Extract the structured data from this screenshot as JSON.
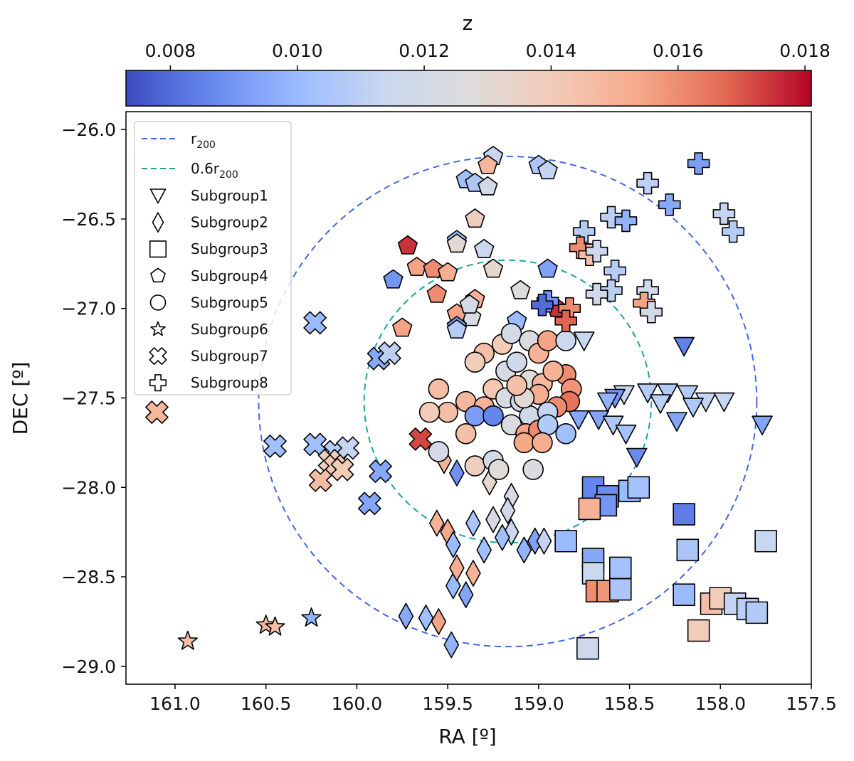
{
  "chart_data": {
    "type": "scatter",
    "xlabel": "RA [º]",
    "ylabel": "DEC [º]",
    "xlim": [
      161.27,
      157.5
    ],
    "ylim": [
      -29.1,
      -25.9
    ],
    "xticks": [
      161.0,
      160.5,
      160.0,
      159.5,
      159.0,
      158.5,
      158.0,
      157.5
    ],
    "xtick_labels": [
      "161.0",
      "160.5",
      "160.0",
      "159.5",
      "159.0",
      "158.5",
      "158.0",
      "157.5"
    ],
    "yticks": [
      -26.0,
      -26.5,
      -27.0,
      -27.5,
      -28.0,
      -28.5,
      -29.0
    ],
    "ytick_labels": [
      "−26.0",
      "−26.5",
      "−27.0",
      "−27.5",
      "−28.0",
      "−28.5",
      "−29.0"
    ],
    "colorbar": {
      "label": "z",
      "range": [
        0.0073,
        0.0181
      ],
      "ticks": [
        0.008,
        0.01,
        0.012,
        0.014,
        0.016,
        0.018
      ],
      "tick_labels": [
        "0.008",
        "0.010",
        "0.012",
        "0.014",
        "0.016",
        "0.018"
      ],
      "colormap": "coolwarm",
      "colormap_stops": [
        "#3b4cc0",
        "#6788ee",
        "#9abbff",
        "#c9d7f0",
        "#dddcdc",
        "#f2cbb7",
        "#f7a889",
        "#e26952",
        "#b40426"
      ]
    },
    "circles": [
      {
        "name": "r200",
        "center": [
          159.17,
          -27.52
        ],
        "radius": 1.37,
        "color": "#4169e1",
        "style": "dashed"
      },
      {
        "name": "0.6r200",
        "center": [
          159.17,
          -27.52
        ],
        "radius": 0.79,
        "color": "#20a39e",
        "style": "dashed"
      }
    ],
    "legend": {
      "position": "upper-left",
      "lines": [
        {
          "label_main": "r",
          "label_sub": "200",
          "color": "#4169e1"
        },
        {
          "label_main": "0.6r",
          "label_sub": "200",
          "color": "#20a39e"
        }
      ],
      "markers": [
        {
          "label": "Subgroup1",
          "marker": "tri_down"
        },
        {
          "label": "Subgroup2",
          "marker": "diamond"
        },
        {
          "label": "Subgroup3",
          "marker": "square"
        },
        {
          "label": "Subgroup4",
          "marker": "pentagon"
        },
        {
          "label": "Subgroup5",
          "marker": "circle"
        },
        {
          "label": "Subgroup6",
          "marker": "star"
        },
        {
          "label": "Subgroup7",
          "marker": "x"
        },
        {
          "label": "Subgroup8",
          "marker": "plus"
        }
      ]
    },
    "series": [
      {
        "name": "Subgroup1",
        "marker": "tri_down",
        "points": [
          [
            158.75,
            -27.18,
            0.0113
          ],
          [
            158.2,
            -27.21,
            0.0085
          ],
          [
            158.53,
            -27.48,
            0.0114
          ],
          [
            158.4,
            -27.47,
            0.0108
          ],
          [
            158.29,
            -27.47,
            0.0107
          ],
          [
            158.18,
            -27.48,
            0.0107
          ],
          [
            158.08,
            -27.52,
            0.0112
          ],
          [
            157.98,
            -27.52,
            0.0113
          ],
          [
            158.15,
            -27.55,
            0.0106
          ],
          [
            158.58,
            -27.5,
            0.009
          ],
          [
            158.78,
            -27.62,
            0.0095
          ],
          [
            158.67,
            -27.62,
            0.0094
          ],
          [
            158.59,
            -27.65,
            0.0106
          ],
          [
            158.52,
            -27.7,
            0.0103
          ],
          [
            158.46,
            -27.83,
            0.0087
          ],
          [
            158.24,
            -27.63,
            0.0094
          ],
          [
            157.77,
            -27.65,
            0.0094
          ],
          [
            158.62,
            -27.52,
            0.0098
          ],
          [
            158.33,
            -27.53,
            0.011
          ]
        ]
      },
      {
        "name": "Subgroup2",
        "marker": "diamond",
        "points": [
          [
            159.45,
            -27.92,
            0.0089
          ],
          [
            159.27,
            -27.97,
            0.0132
          ],
          [
            159.15,
            -28.05,
            0.0122
          ],
          [
            159.56,
            -28.2,
            0.015
          ],
          [
            159.5,
            -28.25,
            0.0154
          ],
          [
            159.47,
            -28.32,
            0.01
          ],
          [
            159.36,
            -28.2,
            0.0105
          ],
          [
            159.3,
            -28.35,
            0.0102
          ],
          [
            159.25,
            -28.18,
            0.0122
          ],
          [
            159.17,
            -28.13,
            0.0118
          ],
          [
            159.15,
            -28.25,
            0.0114
          ],
          [
            159.08,
            -28.35,
            0.0098
          ],
          [
            159.02,
            -28.3,
            0.0093
          ],
          [
            158.97,
            -28.3,
            0.0112
          ],
          [
            159.36,
            -28.48,
            0.015
          ],
          [
            159.47,
            -28.55,
            0.01
          ],
          [
            159.4,
            -28.6,
            0.0094
          ],
          [
            159.55,
            -28.75,
            0.0155
          ],
          [
            159.62,
            -28.73,
            0.0102
          ],
          [
            159.48,
            -28.88,
            0.0098
          ],
          [
            159.52,
            -27.85,
            0.015
          ],
          [
            159.45,
            -28.45,
            0.0152
          ],
          [
            159.2,
            -28.28,
            0.0102
          ],
          [
            159.73,
            -28.72,
            0.0095
          ]
        ]
      },
      {
        "name": "Subgroup3",
        "marker": "square",
        "points": [
          [
            158.7,
            -28.0,
            0.0086
          ],
          [
            158.62,
            -28.05,
            0.0088
          ],
          [
            158.63,
            -28.1,
            0.009
          ],
          [
            158.72,
            -28.12,
            0.015
          ],
          [
            158.5,
            -28.02,
            0.01
          ],
          [
            158.45,
            -28.0,
            0.0103
          ],
          [
            158.85,
            -28.3,
            0.01
          ],
          [
            158.7,
            -28.4,
            0.0095
          ],
          [
            158.55,
            -28.45,
            0.0103
          ],
          [
            158.7,
            -28.48,
            0.0115
          ],
          [
            158.68,
            -28.58,
            0.016
          ],
          [
            158.62,
            -28.58,
            0.0158
          ],
          [
            158.55,
            -28.57,
            0.0105
          ],
          [
            158.2,
            -28.15,
            0.0084
          ],
          [
            158.18,
            -28.35,
            0.0105
          ],
          [
            158.2,
            -28.6,
            0.01
          ],
          [
            157.75,
            -28.3,
            0.0113
          ],
          [
            158.05,
            -28.65,
            0.0145
          ],
          [
            158.0,
            -28.62,
            0.014
          ],
          [
            157.92,
            -28.65,
            0.0112
          ],
          [
            157.85,
            -28.68,
            0.0109
          ],
          [
            157.8,
            -28.7,
            0.0107
          ],
          [
            158.12,
            -28.8,
            0.014
          ],
          [
            158.73,
            -28.9,
            0.0117
          ]
        ]
      },
      {
        "name": "Subgroup4",
        "marker": "pentagon",
        "points": [
          [
            159.4,
            -26.28,
            0.0102
          ],
          [
            159.35,
            -26.3,
            0.0106
          ],
          [
            159.25,
            -26.15,
            0.0113
          ],
          [
            159.28,
            -26.2,
            0.0148
          ],
          [
            159.28,
            -26.32,
            0.012
          ],
          [
            159.0,
            -26.2,
            0.0105
          ],
          [
            158.95,
            -26.23,
            0.0112
          ],
          [
            159.35,
            -26.5,
            0.0138
          ],
          [
            159.45,
            -26.62,
            0.0102
          ],
          [
            159.45,
            -26.64,
            0.013
          ],
          [
            159.72,
            -26.65,
            0.0175
          ],
          [
            159.67,
            -26.77,
            0.0155
          ],
          [
            159.58,
            -26.78,
            0.016
          ],
          [
            159.5,
            -26.8,
            0.0152
          ],
          [
            159.8,
            -26.84,
            0.009
          ],
          [
            159.56,
            -26.92,
            0.016
          ],
          [
            159.3,
            -26.67,
            0.0115
          ],
          [
            159.25,
            -26.78,
            0.0132
          ],
          [
            158.95,
            -26.78,
            0.0093
          ],
          [
            159.1,
            -26.9,
            0.0126
          ],
          [
            159.35,
            -26.95,
            0.015
          ],
          [
            159.37,
            -27.05,
            0.0125
          ],
          [
            158.9,
            -27.0,
            0.0175
          ],
          [
            159.12,
            -27.07,
            0.01
          ],
          [
            159.45,
            -27.03,
            0.0155
          ],
          [
            159.45,
            -27.1,
            0.009
          ],
          [
            159.45,
            -27.12,
            0.0108
          ],
          [
            159.75,
            -27.11,
            0.0155
          ],
          [
            159.38,
            -26.98,
            0.012
          ]
        ]
      },
      {
        "name": "Subgroup5",
        "marker": "circle",
        "points": [
          [
            159.55,
            -27.45,
            0.0146
          ],
          [
            159.5,
            -27.58,
            0.0145
          ],
          [
            159.3,
            -27.25,
            0.0145
          ],
          [
            159.2,
            -27.2,
            0.014
          ],
          [
            159.15,
            -27.14,
            0.012
          ],
          [
            159.05,
            -27.18,
            0.0125
          ],
          [
            159.0,
            -27.25,
            0.015
          ],
          [
            158.95,
            -27.18,
            0.0155
          ],
          [
            158.85,
            -27.18,
            0.0115
          ],
          [
            159.35,
            -27.3,
            0.014
          ],
          [
            159.18,
            -27.35,
            0.0122
          ],
          [
            159.12,
            -27.3,
            0.0118
          ],
          [
            159.05,
            -27.4,
            0.0128
          ],
          [
            158.98,
            -27.42,
            0.0148
          ],
          [
            158.85,
            -27.37,
            0.016
          ],
          [
            158.82,
            -27.45,
            0.0158
          ],
          [
            158.83,
            -27.52,
            0.0165
          ],
          [
            159.4,
            -27.52,
            0.0148
          ],
          [
            159.3,
            -27.55,
            0.015
          ],
          [
            159.25,
            -27.45,
            0.0142
          ],
          [
            159.18,
            -27.5,
            0.0122
          ],
          [
            159.1,
            -27.52,
            0.012
          ],
          [
            159.0,
            -27.48,
            0.0152
          ],
          [
            158.9,
            -27.55,
            0.016
          ],
          [
            159.35,
            -27.6,
            0.0092
          ],
          [
            159.25,
            -27.6,
            0.0086
          ],
          [
            159.15,
            -27.65,
            0.0124
          ],
          [
            159.05,
            -27.6,
            0.0118
          ],
          [
            158.95,
            -27.58,
            0.0112
          ],
          [
            159.4,
            -27.7,
            0.0145
          ],
          [
            159.07,
            -27.7,
            0.0155
          ],
          [
            159.0,
            -27.68,
            0.016
          ],
          [
            158.95,
            -27.65,
            0.0107
          ],
          [
            158.85,
            -27.7,
            0.0102
          ],
          [
            159.6,
            -27.58,
            0.014
          ],
          [
            159.55,
            -27.8,
            0.012
          ],
          [
            159.08,
            -27.75,
            0.0154
          ],
          [
            158.98,
            -27.75,
            0.0152
          ],
          [
            159.35,
            -27.88,
            0.0138
          ],
          [
            159.25,
            -27.85,
            0.012
          ],
          [
            159.22,
            -27.9,
            0.0128
          ],
          [
            159.03,
            -27.9,
            0.0124
          ],
          [
            159.08,
            -27.5,
            0.013
          ],
          [
            159.12,
            -27.43,
            0.0145
          ],
          [
            158.92,
            -27.35,
            0.015
          ]
        ]
      },
      {
        "name": "Subgroup6",
        "marker": "star",
        "points": [
          [
            160.93,
            -28.86,
            0.0145
          ],
          [
            160.5,
            -28.77,
            0.0148
          ],
          [
            160.45,
            -28.78,
            0.0145
          ],
          [
            160.25,
            -28.73,
            0.0098
          ]
        ]
      },
      {
        "name": "Subgroup7",
        "marker": "x",
        "points": [
          [
            160.23,
            -27.08,
            0.01
          ],
          [
            159.88,
            -27.28,
            0.0095
          ],
          [
            159.82,
            -27.25,
            0.011
          ],
          [
            161.1,
            -27.58,
            0.0148
          ],
          [
            160.45,
            -27.77,
            0.0102
          ],
          [
            160.23,
            -27.76,
            0.0102
          ],
          [
            160.12,
            -27.8,
            0.0108
          ],
          [
            160.05,
            -27.78,
            0.0112
          ],
          [
            160.15,
            -27.85,
            0.0138
          ],
          [
            160.12,
            -27.88,
            0.0142
          ],
          [
            160.08,
            -27.9,
            0.014
          ],
          [
            160.2,
            -27.96,
            0.0146
          ],
          [
            159.87,
            -27.91,
            0.0095
          ],
          [
            159.93,
            -28.09,
            0.0094
          ],
          [
            159.65,
            -27.73,
            0.0172
          ]
        ]
      },
      {
        "name": "Subgroup8",
        "marker": "plus",
        "points": [
          [
            158.12,
            -26.19,
            0.0092
          ],
          [
            158.4,
            -26.3,
            0.011
          ],
          [
            158.28,
            -26.42,
            0.0095
          ],
          [
            157.98,
            -26.47,
            0.0112
          ],
          [
            157.93,
            -26.57,
            0.0108
          ],
          [
            158.6,
            -26.49,
            0.011
          ],
          [
            158.52,
            -26.51,
            0.0098
          ],
          [
            158.75,
            -26.57,
            0.0108
          ],
          [
            158.77,
            -26.66,
            0.016
          ],
          [
            158.72,
            -26.7,
            0.0145
          ],
          [
            158.68,
            -26.68,
            0.0115
          ],
          [
            158.58,
            -26.79,
            0.0108
          ],
          [
            158.6,
            -26.9,
            0.011
          ],
          [
            158.68,
            -26.92,
            0.0118
          ],
          [
            158.95,
            -26.96,
            0.009
          ],
          [
            158.98,
            -26.98,
            0.008
          ],
          [
            158.83,
            -27.0,
            0.016
          ],
          [
            158.85,
            -27.07,
            0.0168
          ],
          [
            158.4,
            -26.9,
            0.0118
          ],
          [
            158.42,
            -26.97,
            0.0155
          ],
          [
            158.38,
            -27.02,
            0.012
          ]
        ]
      }
    ]
  }
}
